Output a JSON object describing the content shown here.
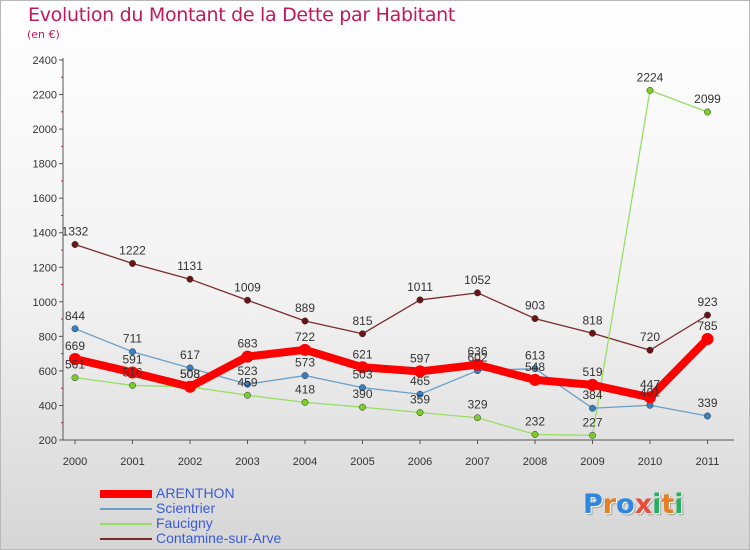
{
  "title": "Evolution du Montant de la Dette par Habitant",
  "subtitle": "(en €)",
  "logo": {
    "text": "Proxiti",
    "letters": [
      "P",
      "r",
      "o",
      "x",
      "i",
      "t",
      "i"
    ],
    "colors": [
      "#2e86de",
      "#e67e22",
      "#2e86de",
      "#e74c3c",
      "#27ae60",
      "#e67e22",
      "#27ae60"
    ]
  },
  "chart_data": {
    "type": "line",
    "x": [
      "2000",
      "2001",
      "2002",
      "2003",
      "2004",
      "2005",
      "2006",
      "2007",
      "2008",
      "2009",
      "2010",
      "2011"
    ],
    "ylim": [
      200,
      2400
    ],
    "yticks": [
      "200",
      "400",
      "600",
      "800",
      "1000",
      "1200",
      "1400",
      "1600",
      "1800",
      "2000",
      "2200",
      "2400"
    ],
    "grid": false,
    "legend_position": "bottom-left",
    "series": [
      {
        "name": "ARENTHON",
        "color": "#ff0000",
        "marker": "#ff0000",
        "values": [
          669,
          591,
          508,
          683,
          722,
          621,
          597,
          636,
          548,
          519,
          447,
          785
        ],
        "labels": [
          "669",
          "591",
          "508",
          "683",
          "722",
          "621",
          "597",
          "636",
          "548",
          "519",
          "447",
          "785"
        ]
      },
      {
        "name": "Scientrier",
        "color": "#6a9fc8",
        "marker": "#3a7fc0",
        "values": [
          844,
          711,
          617,
          523,
          573,
          503,
          465,
          602,
          613,
          384,
          401,
          339
        ],
        "labels": [
          "844",
          "711",
          "617",
          "523",
          "573",
          "503",
          "465",
          "602",
          "613",
          "384",
          "401",
          "339"
        ]
      },
      {
        "name": "Faucigny",
        "color": "#99dd66",
        "marker": "#7ccc2a",
        "values": [
          561,
          516,
          508,
          459,
          418,
          390,
          359,
          329,
          232,
          227,
          2224,
          2099
        ],
        "labels": [
          "561",
          "516",
          "508",
          "459",
          "418",
          "390",
          "359",
          "329",
          "232",
          "227",
          "2224",
          "2099"
        ]
      },
      {
        "name": "Contamine-sur-Arve",
        "color": "#7a2a2a",
        "marker": "#6b1414",
        "values": [
          1332,
          1222,
          1131,
          1009,
          889,
          815,
          1011,
          1052,
          903,
          818,
          720,
          923
        ],
        "labels": [
          "1332",
          "1222",
          "1131",
          "1009",
          "889",
          "815",
          "1011",
          "1052",
          "903",
          "818",
          "720",
          "923"
        ]
      }
    ]
  }
}
